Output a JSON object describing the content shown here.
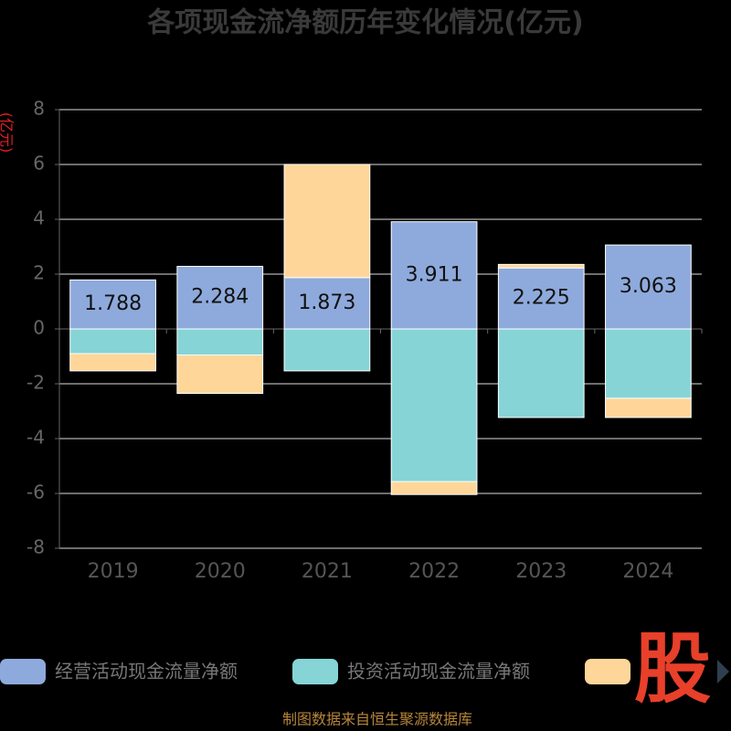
{
  "chart_data": {
    "type": "bar",
    "stacked": true,
    "title": "各项现金流净额历年变化情况(亿元)",
    "y_label": "(亿元)",
    "categories": [
      "2019",
      "2020",
      "2021",
      "2022",
      "2023",
      "2024"
    ],
    "series": [
      {
        "name": "经营活动现金流量净额",
        "color": "#8eaadc",
        "values": [
          1.788,
          2.284,
          1.873,
          3.911,
          2.225,
          3.063
        ],
        "show_labels": true
      },
      {
        "name": "投资活动现金流量净额",
        "color": "#86d4d6",
        "values": [
          -0.9,
          -0.95,
          -1.53,
          -5.57,
          -3.23,
          -2.53
        ]
      },
      {
        "color": "#ffd699",
        "values": [
          -0.63,
          -1.4,
          4.13,
          -0.47,
          0.13,
          -0.7
        ]
      }
    ],
    "ylim": [
      -8,
      8
    ],
    "yticks": [
      -8,
      -6,
      -4,
      -2,
      0,
      2,
      4,
      6,
      8
    ],
    "grid": true,
    "watermark": "股",
    "source": "制图数据来自恒生聚源数据库"
  }
}
